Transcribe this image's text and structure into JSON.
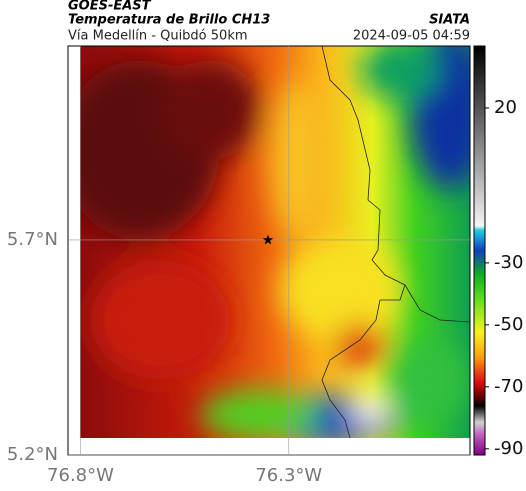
{
  "header": {
    "title": "GOES-EAST",
    "subtitle": "Temperatura de Brillo CH13",
    "source": "SIATA",
    "region": "Vía Medellín - Quibdó 50km",
    "timestamp": "2024-09-05 04:59"
  },
  "map": {
    "lonlim": [
      -76.83,
      -75.865
    ],
    "latlim": [
      5.2,
      6.151
    ],
    "lonticks": [
      {
        "value": -76.8,
        "label": "76.8°W"
      },
      {
        "value": -76.3,
        "label": "76.3°W"
      }
    ],
    "latticks": [
      {
        "value": 5.2,
        "label": "5.2°N"
      },
      {
        "value": 5.7,
        "label": "5.7°N"
      }
    ],
    "marker": {
      "lon": -76.35,
      "lat": 5.7
    }
  },
  "colorbar": {
    "lim": [
      -92,
      40
    ],
    "ticks": [
      20,
      -30,
      -50,
      -70,
      -90
    ]
  }
}
